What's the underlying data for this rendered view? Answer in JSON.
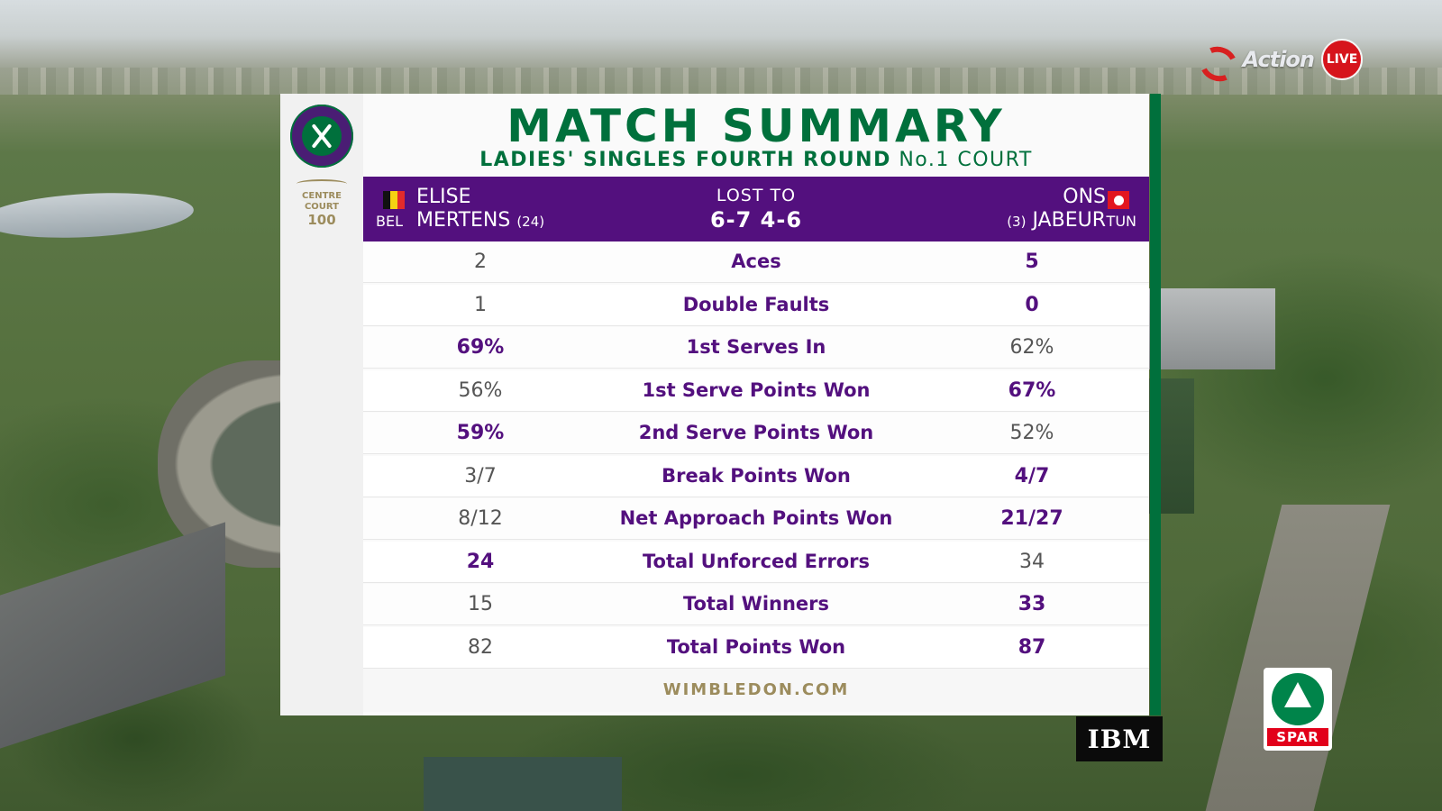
{
  "broadcast": {
    "channel": "Action",
    "live_badge": "LIVE"
  },
  "branding": {
    "centre_court_line1": "CENTRE",
    "centre_court_line2": "COURT",
    "centre_court_number": "100",
    "footer": "WIMBLEDON.COM",
    "accent_green": "#00703c",
    "accent_purple": "#53107e"
  },
  "header": {
    "title": "MATCH SUMMARY",
    "subtitle_bold": "LADIES' SINGLES FOURTH ROUND",
    "subtitle_court": "No.1 COURT"
  },
  "match": {
    "player_left": {
      "first": "ELISE",
      "last": "MERTENS",
      "seed": "(24)",
      "country": "BEL"
    },
    "player_right": {
      "first": "ONS",
      "last": "JABEUR",
      "seed": "(3)",
      "country": "TUN"
    },
    "result": "LOST TO",
    "score": "6-7 4-6"
  },
  "stats": [
    {
      "label": "Aces",
      "left": "2",
      "right": "5",
      "highlight": "right"
    },
    {
      "label": "Double Faults",
      "left": "1",
      "right": "0",
      "highlight": "right"
    },
    {
      "label": "1st Serves In",
      "left": "69%",
      "right": "62%",
      "highlight": "left"
    },
    {
      "label": "1st Serve Points Won",
      "left": "56%",
      "right": "67%",
      "highlight": "right"
    },
    {
      "label": "2nd Serve Points Won",
      "left": "59%",
      "right": "52%",
      "highlight": "left"
    },
    {
      "label": "Break Points Won",
      "left": "3/7",
      "right": "4/7",
      "highlight": "right"
    },
    {
      "label": "Net Approach Points Won",
      "left": "8/12",
      "right": "21/27",
      "highlight": "right"
    },
    {
      "label": "Total Unforced Errors",
      "left": "24",
      "right": "34",
      "highlight": "left"
    },
    {
      "label": "Total Winners",
      "left": "15",
      "right": "33",
      "highlight": "right"
    },
    {
      "label": "Total Points Won",
      "left": "82",
      "right": "87",
      "highlight": "right"
    }
  ],
  "sponsors": {
    "ibm": "IBM",
    "spar": "SPAR"
  }
}
